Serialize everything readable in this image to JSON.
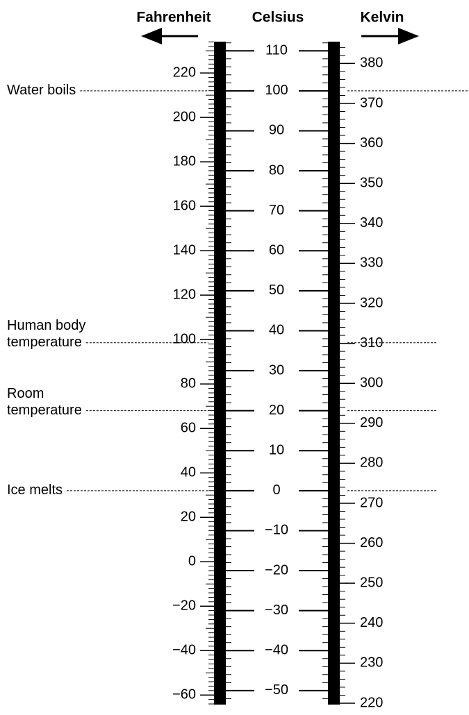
{
  "scales": [
    {
      "name": "Fahrenheit",
      "lim": [
        -64.3,
        234.1
      ],
      "minor_step": 2,
      "ticks": [
        {
          "value": -60,
          "label": "−60"
        },
        {
          "value": -40,
          "label": "−40"
        },
        {
          "value": -20,
          "label": "−20"
        },
        0,
        20,
        40,
        60,
        80,
        100,
        120,
        140,
        160,
        180,
        200,
        220
      ]
    },
    {
      "name": "Celsius",
      "lim": [
        -53.5,
        112.3
      ],
      "minor_step": 2,
      "ticks": [
        {
          "value": -50,
          "label": "−50"
        },
        {
          "value": -40,
          "label": "−40"
        },
        {
          "value": -30,
          "label": "−30"
        },
        {
          "value": -20,
          "label": "−20"
        },
        {
          "value": -10,
          "label": "−10"
        },
        0,
        10,
        20,
        30,
        40,
        50,
        60,
        70,
        80,
        90,
        100,
        110
      ]
    },
    {
      "name": "Kelvin",
      "lim": [
        219.65,
        385.45
      ],
      "minor_step": 2,
      "ticks": [
        220,
        230,
        240,
        250,
        260,
        270,
        280,
        290,
        300,
        310,
        320,
        330,
        340,
        350,
        360,
        370,
        380
      ]
    }
  ],
  "references": [
    {
      "lines": [
        "Water boils"
      ],
      "celsius": 100
    },
    {
      "lines": [
        "Human body",
        "temperature"
      ],
      "celsius": 37
    },
    {
      "lines": [
        "Room",
        "temperature"
      ],
      "celsius": 20
    },
    {
      "lines": [
        "Ice melts"
      ],
      "celsius": 0
    }
  ]
}
